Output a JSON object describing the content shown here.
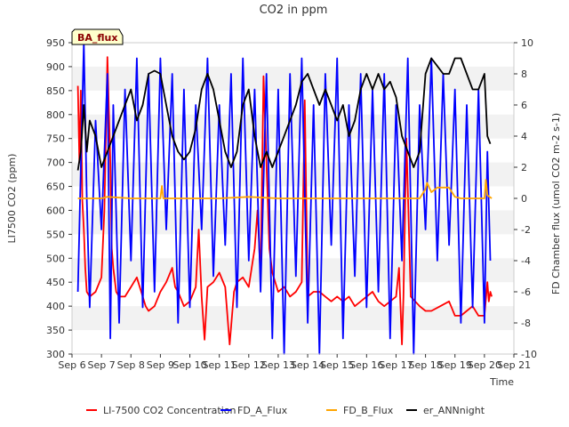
{
  "chart_data": {
    "type": "line",
    "title": "CO2 in ppm",
    "xlabel": "Time",
    "ylabel": "LI7500 CO2 (ppm)",
    "y2label": "FD Chamber flux (umol CO2 m-2 s-1)",
    "badge": "BA_flux",
    "x_range_days": [
      6,
      21
    ],
    "x_tick_labels": [
      "Sep 6",
      "Sep 7",
      "Sep 8",
      "Sep 9",
      "Sep 10",
      "Sep 11",
      "Sep 12",
      "Sep 13",
      "Sep 14",
      "Sep 15",
      "Sep 16",
      "Sep 17",
      "Sep 18",
      "Sep 19",
      "Sep 20",
      "Sep 21"
    ],
    "ylim": [
      300,
      950
    ],
    "y_ticks": [
      300,
      350,
      400,
      450,
      500,
      550,
      600,
      650,
      700,
      750,
      800,
      850,
      900,
      950
    ],
    "y2lim": [
      -10,
      10
    ],
    "y2_ticks": [
      -10,
      -8,
      -6,
      -4,
      -2,
      0,
      2,
      4,
      6,
      8,
      10
    ],
    "grid": "horizontal bands",
    "legend_position": "bottom",
    "series": [
      {
        "name": "LI-7500 CO2 Concentration",
        "axis": "left",
        "color": "#ff0000",
        "x": [
          6.2,
          6.25,
          6.3,
          6.35,
          6.4,
          6.45,
          6.5,
          6.6,
          6.8,
          7.0,
          7.1,
          7.2,
          7.3,
          7.35,
          7.4,
          7.5,
          7.6,
          7.8,
          8.0,
          8.2,
          8.4,
          8.5,
          8.6,
          8.8,
          9.0,
          9.2,
          9.4,
          9.5,
          9.6,
          9.8,
          10.0,
          10.2,
          10.3,
          10.4,
          10.5,
          10.6,
          10.8,
          11.0,
          11.2,
          11.35,
          11.5,
          11.6,
          11.8,
          12.0,
          12.2,
          12.3,
          12.4,
          12.5,
          12.7,
          12.8,
          13.0,
          13.2,
          13.4,
          13.6,
          13.8,
          13.9,
          14.0,
          14.2,
          14.4,
          14.6,
          14.8,
          15.0,
          15.2,
          15.4,
          15.6,
          15.8,
          16.0,
          16.2,
          16.4,
          16.6,
          16.8,
          17.0,
          17.1,
          17.2,
          17.25,
          17.35,
          17.5,
          17.8,
          18.0,
          18.2,
          18.5,
          18.8,
          19.0,
          19.2,
          19.4,
          19.6,
          19.8,
          20.0,
          20.1,
          20.15,
          20.2,
          20.25
        ],
        "y": [
          860,
          700,
          850,
          620,
          560,
          480,
          430,
          420,
          430,
          460,
          600,
          920,
          700,
          520,
          480,
          430,
          420,
          420,
          440,
          460,
          420,
          400,
          390,
          400,
          430,
          450,
          480,
          440,
          430,
          400,
          410,
          440,
          560,
          420,
          330,
          440,
          450,
          470,
          440,
          320,
          430,
          450,
          460,
          440,
          520,
          600,
          460,
          880,
          520,
          470,
          430,
          440,
          420,
          430,
          450,
          830,
          420,
          430,
          430,
          420,
          410,
          420,
          410,
          420,
          400,
          410,
          420,
          430,
          410,
          400,
          410,
          420,
          480,
          320,
          420,
          750,
          420,
          400,
          390,
          390,
          400,
          410,
          380,
          380,
          390,
          400,
          380,
          380,
          450,
          410,
          430,
          420
        ]
      },
      {
        "name": "FD_A_Flux",
        "axis": "right",
        "color": "#0000ff",
        "x": [
          6.2,
          6.3,
          6.4,
          6.5,
          6.6,
          6.8,
          7.0,
          7.2,
          7.3,
          7.4,
          7.6,
          7.8,
          8.0,
          8.2,
          8.4,
          8.6,
          8.8,
          9.0,
          9.2,
          9.4,
          9.6,
          9.8,
          10.0,
          10.2,
          10.4,
          10.6,
          10.8,
          11.0,
          11.2,
          11.4,
          11.6,
          11.8,
          12.0,
          12.2,
          12.4,
          12.6,
          12.8,
          13.0,
          13.2,
          13.4,
          13.6,
          13.8,
          14.0,
          14.2,
          14.4,
          14.6,
          14.8,
          15.0,
          15.2,
          15.4,
          15.6,
          15.8,
          16.0,
          16.2,
          16.4,
          16.6,
          16.8,
          17.0,
          17.2,
          17.4,
          17.6,
          17.8,
          18.0,
          18.2,
          18.4,
          18.6,
          18.8,
          19.0,
          19.2,
          19.4,
          19.6,
          19.8,
          20.0,
          20.1,
          20.2
        ],
        "y": [
          -6,
          2,
          10,
          0,
          -7,
          5,
          -2,
          8,
          -9,
          6,
          -8,
          7,
          -4,
          9,
          -7,
          8,
          -6,
          9,
          -2,
          8,
          -8,
          7,
          -7,
          6,
          -2,
          9,
          -5,
          6,
          -3,
          8,
          -7,
          9,
          -4,
          7,
          -6,
          8,
          -9,
          7,
          -10,
          8,
          -5,
          9,
          -8,
          6,
          -10,
          8,
          -3,
          9,
          -9,
          6,
          -5,
          8,
          -7,
          7,
          -6,
          8,
          -9,
          6,
          -4,
          9,
          -10,
          6,
          -2,
          9,
          -4,
          8,
          -3,
          7,
          -8,
          6,
          -7,
          7,
          -8,
          3,
          -4
        ]
      },
      {
        "name": "FD_B_Flux",
        "axis": "right",
        "color": "#ffa500",
        "x": [
          6.2,
          7.0,
          7.2,
          8.0,
          9.0,
          9.05,
          9.1,
          10.0,
          11.0,
          12.0,
          13.0,
          14.0,
          15.0,
          16.0,
          17.0,
          17.5,
          17.8,
          18.0,
          18.05,
          18.2,
          18.4,
          18.8,
          19.0,
          19.2,
          19.5,
          19.8,
          20.0,
          20.05,
          20.1,
          20.25
        ],
        "y": [
          0,
          0,
          0.1,
          0,
          0,
          0.8,
          0,
          0,
          0,
          0.1,
          0,
          0,
          0,
          0,
          0,
          0,
          0,
          0.6,
          1.0,
          0.4,
          0.7,
          0.7,
          0.1,
          0,
          0,
          0,
          0,
          1.2,
          0.2,
          0
        ]
      },
      {
        "name": "er_ANNnight",
        "axis": "right",
        "color": "#000000",
        "x": [
          6.2,
          6.3,
          6.4,
          6.5,
          6.6,
          6.8,
          7.0,
          7.2,
          7.4,
          7.6,
          7.8,
          8.0,
          8.2,
          8.4,
          8.6,
          8.8,
          9.0,
          9.2,
          9.4,
          9.6,
          9.8,
          10.0,
          10.2,
          10.4,
          10.6,
          10.8,
          11.0,
          11.2,
          11.4,
          11.6,
          11.8,
          12.0,
          12.2,
          12.4,
          12.6,
          12.8,
          13.0,
          13.2,
          13.4,
          13.6,
          13.8,
          14.0,
          14.2,
          14.4,
          14.6,
          14.8,
          15.0,
          15.2,
          15.4,
          15.6,
          15.8,
          16.0,
          16.2,
          16.4,
          16.6,
          16.8,
          17.0,
          17.2,
          17.4,
          17.6,
          17.8,
          18.0,
          18.2,
          18.4,
          18.6,
          18.8,
          19.0,
          19.2,
          19.4,
          19.6,
          19.8,
          20.0,
          20.1,
          20.2
        ],
        "y": [
          1.8,
          3,
          6,
          3,
          5,
          4,
          2,
          3,
          4,
          5,
          6,
          7,
          5,
          6,
          8,
          8.2,
          8,
          6,
          4,
          3,
          2.5,
          3,
          4.5,
          7,
          8,
          7,
          5,
          3,
          2,
          3,
          6,
          7,
          4,
          2,
          3,
          2,
          3,
          4,
          5,
          6,
          7.5,
          8,
          7,
          6,
          7,
          6,
          5,
          6,
          4,
          5,
          7,
          8,
          7,
          8,
          7,
          7.5,
          6.5,
          4,
          3,
          2,
          3,
          8,
          9,
          8.5,
          8,
          8,
          9,
          9,
          8,
          7,
          7,
          8,
          4,
          3.5
        ]
      }
    ]
  }
}
